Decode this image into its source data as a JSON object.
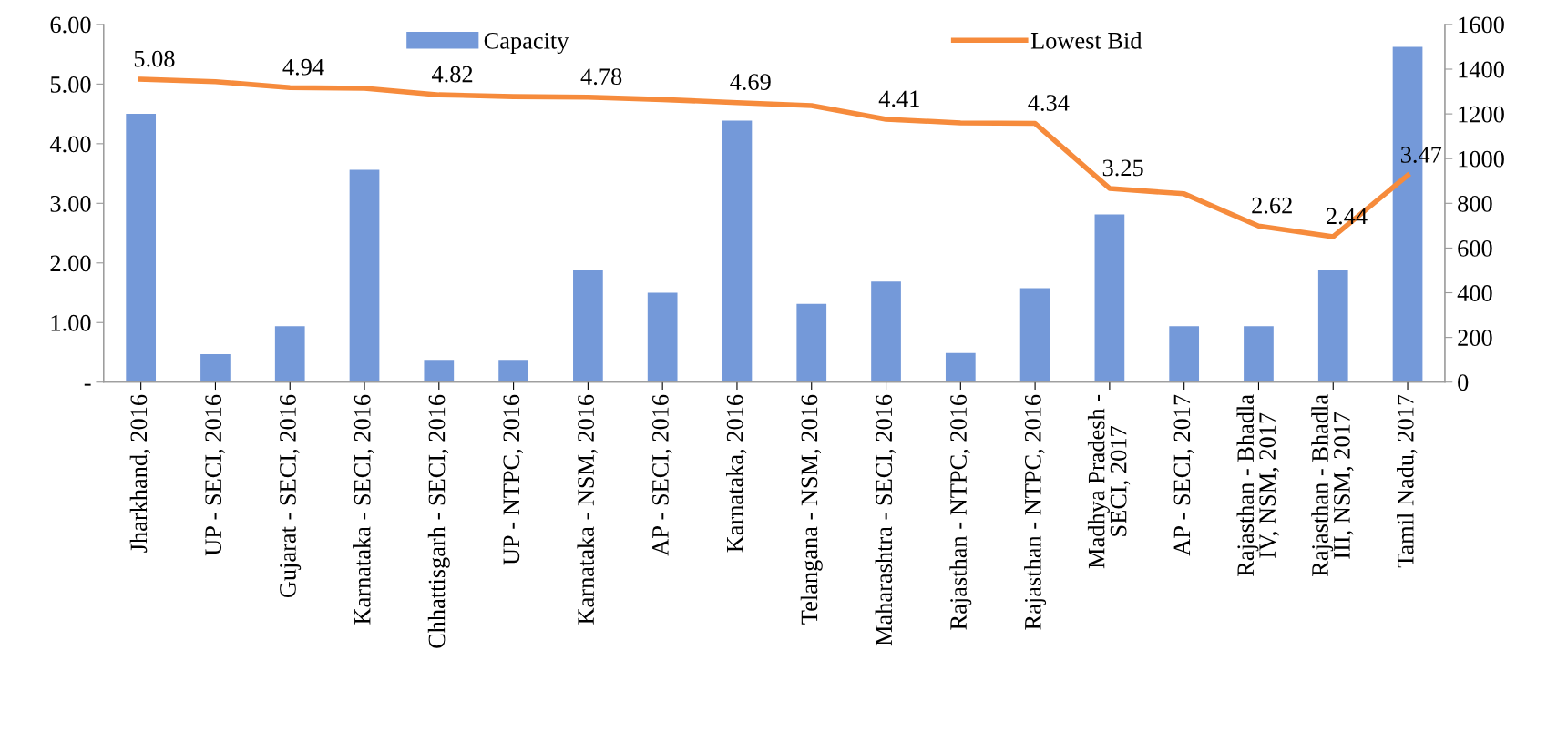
{
  "chart_data": {
    "type": "bar",
    "categories": [
      "Jharkhand, 2016",
      "UP - SECI, 2016",
      "Gujarat - SECI, 2016",
      "Karnataka - SECI, 2016",
      "Chhattisgarh - SECI, 2016",
      "UP - NTPC, 2016",
      "Karnataka - NSM, 2016",
      "AP - SECI, 2016",
      "Karnataka, 2016",
      "Telangana - NSM, 2016",
      "Maharashtra - SECI, 2016",
      "Rajasthan - NTPC, 2016",
      "Rajasthan - NTPC, 2016",
      "Madhya Pradesh -\nSECI, 2017",
      "AP - SECI, 2017",
      "Rajasthan - Bhadla\nIV, NSM, 2017",
      "Rajasthan - Bhadla\nIII, NSM, 2017",
      "Tamil Nadu, 2017"
    ],
    "series": [
      {
        "name": "Capacity",
        "axis": "y2",
        "color": "#7499d9",
        "values": [
          1200,
          125,
          250,
          950,
          100,
          100,
          500,
          400,
          1170,
          350,
          450,
          130,
          420,
          750,
          250,
          250,
          500,
          1500
        ]
      },
      {
        "name": "Lowest Bid",
        "type": "line",
        "color": "#f68b3c",
        "values": [
          5.08,
          5.04,
          4.94,
          4.93,
          4.82,
          4.79,
          4.78,
          4.74,
          4.69,
          4.64,
          4.41,
          4.35,
          4.34,
          3.25,
          3.16,
          2.62,
          2.44,
          3.47
        ],
        "value_labels": [
          "5.08",
          null,
          "4.94",
          null,
          "4.82",
          null,
          "4.78",
          null,
          "4.69",
          null,
          "4.41",
          null,
          "4.34",
          "3.25",
          null,
          "2.62",
          "2.44",
          "3.47"
        ]
      }
    ],
    "ylim": [
      0,
      6
    ],
    "yticks": [
      {
        "value": 0,
        "label": "-"
      },
      {
        "value": 1,
        "label": "1.00"
      },
      {
        "value": 2,
        "label": "2.00"
      },
      {
        "value": 3,
        "label": "3.00"
      },
      {
        "value": 4,
        "label": "4.00"
      },
      {
        "value": 5,
        "label": "5.00"
      },
      {
        "value": 6,
        "label": "6.00"
      }
    ],
    "y2lim": [
      0,
      1600
    ],
    "y2ticks": [
      0,
      200,
      400,
      600,
      800,
      1000,
      1200,
      1400,
      1600
    ],
    "legend": "top",
    "grid": false,
    "marker": "none",
    "line_style": "solid"
  }
}
